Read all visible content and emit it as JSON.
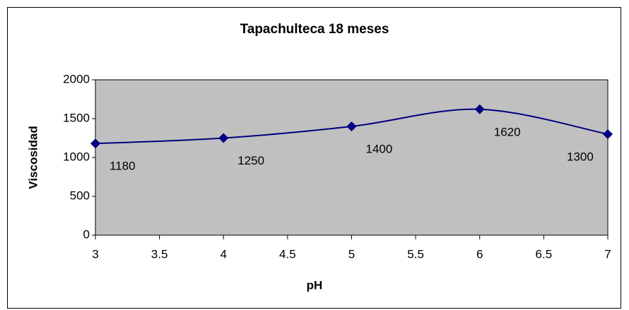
{
  "chart_data": {
    "type": "line",
    "title": "Tapachulteca 18 meses",
    "xlabel": "pH",
    "ylabel": "Viscosidad",
    "x": [
      3,
      4,
      5,
      6,
      7
    ],
    "series": [
      {
        "name": "Viscosidad",
        "color": "#000080",
        "values": [
          1180,
          1250,
          1400,
          1620,
          1300
        ]
      }
    ],
    "xlim": [
      3,
      7
    ],
    "xticks": [
      3,
      3.5,
      4,
      4.5,
      5,
      5.5,
      6,
      6.5,
      7
    ],
    "ylim": [
      0,
      2000
    ],
    "yticks": [
      0,
      500,
      1000,
      1500,
      2000
    ],
    "grid": false,
    "plot_background": "#c0c0c0",
    "smooth": true,
    "data_labels": true
  }
}
